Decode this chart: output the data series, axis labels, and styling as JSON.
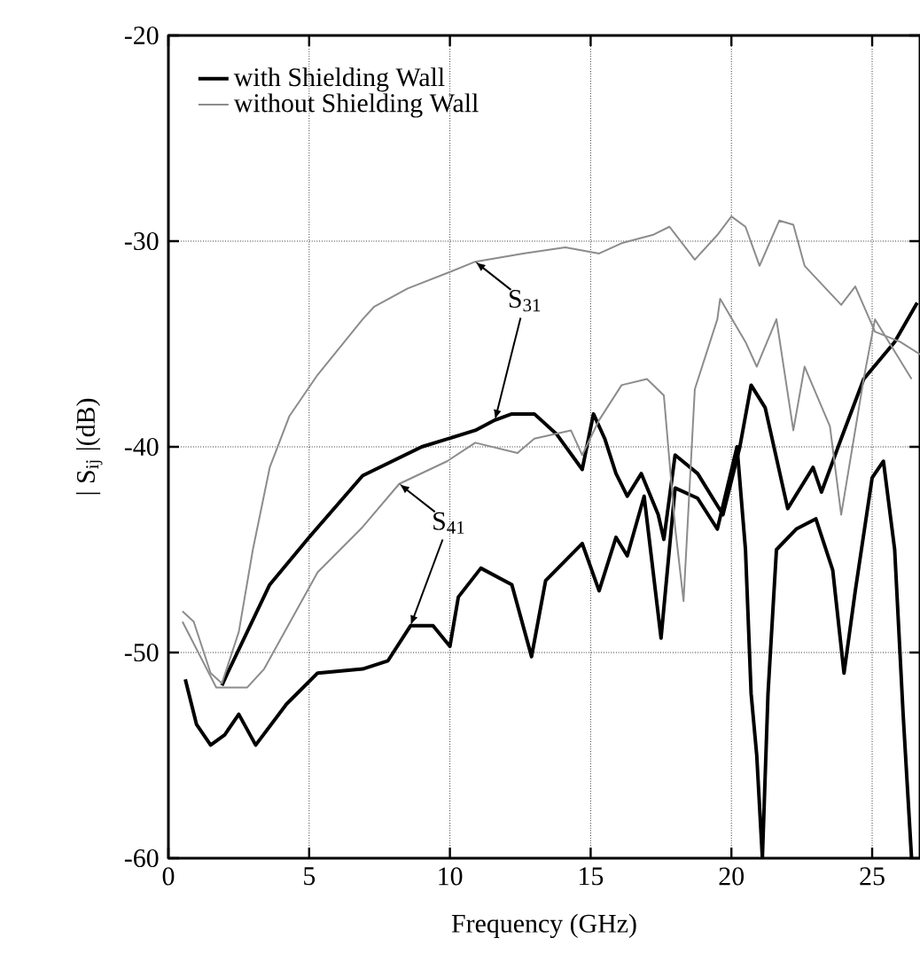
{
  "chart_data": {
    "type": "line",
    "xlabel": "Frequency (GHz)",
    "ylabel": "| S$_{ij}$ |(dB)",
    "xlim": [
      0,
      26.7
    ],
    "ylim": [
      -60,
      -20
    ],
    "xticks": [
      0,
      5,
      10,
      15,
      20,
      25
    ],
    "yticks": [
      -60,
      -50,
      -40,
      -30,
      -20
    ],
    "grid": true,
    "legend": "top left",
    "annotations": [
      {
        "text": "S$_{31}$",
        "x": 10.9,
        "y": -31
      },
      {
        "text": "S$_{41}$",
        "x": 8.2,
        "y": -41.8
      }
    ],
    "series": [
      {
        "name": "with Shielding Wall",
        "color": "#000000",
        "x": [
          1.9,
          2.1,
          3.6,
          5,
          6.9,
          9,
          10.9,
          11.6,
          12.2,
          13,
          13.8,
          14.7,
          15.1,
          15.5,
          15.9,
          16.3,
          16.8,
          17.4,
          17.6,
          18,
          18.8,
          19.7,
          20.3,
          20.7,
          21.2,
          22,
          22.9,
          23.2,
          23.9,
          24.7,
          25.8,
          26.6
        ],
        "values": [
          -51.6,
          -51,
          -46.7,
          -44.4,
          -41.4,
          -40,
          -39.2,
          -38.7,
          -38.4,
          -38.4,
          -39.4,
          -41.1,
          -38.4,
          -39.6,
          -41.3,
          -42.4,
          -41.3,
          -43.3,
          -44.5,
          -40.4,
          -41.3,
          -43.3,
          -40,
          -37,
          -38.1,
          -43,
          -41,
          -42.2,
          -39.6,
          -36.7,
          -34.9,
          -33
        ]
      },
      {
        "name": "without Shielding Wall",
        "color": "#8c8c8c",
        "x": [
          0.5,
          0.9,
          1.5,
          1.9,
          2.5,
          3,
          3.6,
          4.3,
          5.3,
          6.9,
          7.3,
          8.5,
          10,
          10.9,
          12.6,
          14.1,
          15.3,
          16.1,
          17.2,
          17.8,
          18.7,
          19.5,
          20,
          20.5,
          21,
          21.7,
          22.2,
          22.6,
          23.9,
          24.4,
          25.1,
          26,
          26.7
        ],
        "values": [
          -48,
          -48.5,
          -51,
          -51.5,
          -49,
          -45,
          -41,
          -38.5,
          -36.5,
          -33.8,
          -33.2,
          -32.3,
          -31.5,
          -31,
          -30.6,
          -30.3,
          -30.6,
          -30.1,
          -29.7,
          -29.3,
          -30.9,
          -29.7,
          -28.8,
          -29.3,
          -31.2,
          -29,
          -29.2,
          -31.2,
          -33.1,
          -32.2,
          -34.4,
          -34.9,
          -35.5
        ]
      },
      {
        "color": "#000000",
        "x": [
          0.6,
          1,
          1.5,
          2,
          2.5,
          3.1,
          4.2,
          5.3,
          6.9,
          7.8,
          8.6,
          9.4,
          10,
          10.3,
          11.1,
          12.2,
          12.9,
          13.4,
          14.7,
          15.3,
          15.9,
          16.3,
          16.9,
          17.5,
          18,
          18.8,
          19.5,
          20.2,
          20.5,
          20.7,
          20.9,
          21.1,
          21.3,
          21.6,
          22.3,
          23,
          23.6,
          24,
          24.4,
          25,
          25.4,
          25.8,
          26.1,
          26.4
        ],
        "values": [
          -51.3,
          -53.5,
          -54.5,
          -54,
          -53,
          -54.5,
          -52.5,
          -51,
          -50.8,
          -50.4,
          -48.7,
          -48.7,
          -49.7,
          -47.3,
          -45.9,
          -46.7,
          -50.2,
          -46.5,
          -44.7,
          -47,
          -44.4,
          -45.3,
          -42.4,
          -49.3,
          -42,
          -42.5,
          -44,
          -40,
          -45,
          -52,
          -55,
          -60,
          -52,
          -45,
          -44,
          -43.5,
          -46,
          -51,
          -47,
          -41.5,
          -40.7,
          -45,
          -53,
          -60
        ]
      },
      {
        "color": "#8c8c8c",
        "x": [
          0.5,
          1.7,
          2.8,
          3.4,
          5.3,
          6.9,
          8.2,
          9.9,
          10.9,
          12.4,
          13,
          14.3,
          14.7,
          15.3,
          16.1,
          17,
          17.6,
          18,
          18.3,
          18.7,
          19.5,
          19.6,
          20.5,
          20.9,
          21.6,
          22.2,
          22.6,
          23.5,
          23.9,
          24.7,
          25.1,
          26.4
        ],
        "values": [
          -48.5,
          -51.7,
          -51.7,
          -50.8,
          -46.1,
          -43.9,
          -41.8,
          -40.7,
          -39.8,
          -40.3,
          -39.6,
          -39.2,
          -40.4,
          -38.7,
          -37,
          -36.7,
          -37.5,
          -43.9,
          -47.5,
          -37.2,
          -33.8,
          -32.8,
          -34.9,
          -36.1,
          -33.8,
          -39.2,
          -36.1,
          -39,
          -43.3,
          -36.7,
          -33.8,
          -36.7
        ]
      }
    ]
  }
}
